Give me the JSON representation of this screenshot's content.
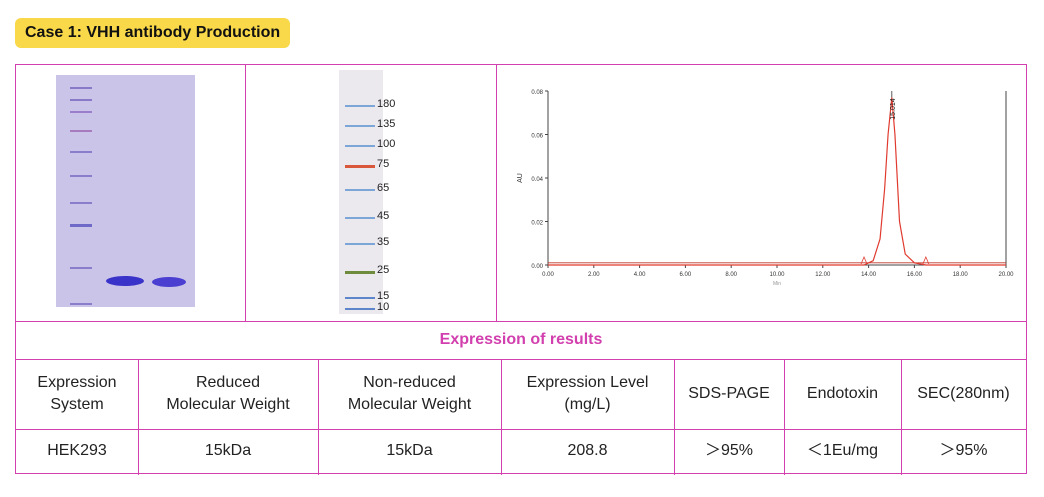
{
  "title": "Case 1: VHH antibody Production",
  "marker": {
    "labels": [
      "180",
      "135",
      "100",
      "75",
      "65",
      "45",
      "35",
      "25",
      "15",
      "10"
    ]
  },
  "chromatogram": {
    "peak_label": "15.014",
    "ylabel": "AU",
    "xlabel_partial": "Min",
    "y_ticks": [
      "0.00",
      "0.02",
      "0.04",
      "0.06",
      "0.08"
    ],
    "x_ticks": [
      "0.00",
      "2.00",
      "4.00",
      "6.00",
      "8.00",
      "10.00",
      "12.00",
      "14.00",
      "16.00",
      "18.00",
      "20.00"
    ]
  },
  "chart_data": {
    "type": "line",
    "title": "",
    "xlabel": "Min",
    "ylabel": "AU",
    "xlim": [
      0,
      20
    ],
    "ylim": [
      0,
      0.08
    ],
    "series": [
      {
        "name": "SEC 280nm",
        "x": [
          0,
          13.8,
          14.2,
          14.5,
          14.7,
          14.85,
          15.014,
          15.15,
          15.35,
          15.6,
          16.0,
          16.5,
          20
        ],
        "y": [
          0,
          0,
          0.002,
          0.012,
          0.035,
          0.06,
          0.077,
          0.06,
          0.02,
          0.005,
          0.001,
          0,
          0
        ]
      }
    ],
    "annotations": [
      {
        "x": 15.014,
        "text": "15.014"
      }
    ]
  },
  "results": {
    "header": "Expression of results",
    "columns": [
      [
        "Expression",
        "System"
      ],
      [
        "Reduced",
        "Molecular Weight"
      ],
      [
        "Non-reduced",
        "Molecular Weight"
      ],
      [
        "Expression Level",
        "(mg/L)"
      ],
      [
        "SDS-PAGE"
      ],
      [
        "Endotoxin"
      ],
      [
        "SEC(280nm)"
      ]
    ],
    "values": [
      "HEK293",
      "15kDa",
      "15kDa",
      "208.8",
      "＞95%",
      "＜1Eu/mg",
      "＞95%"
    ]
  }
}
